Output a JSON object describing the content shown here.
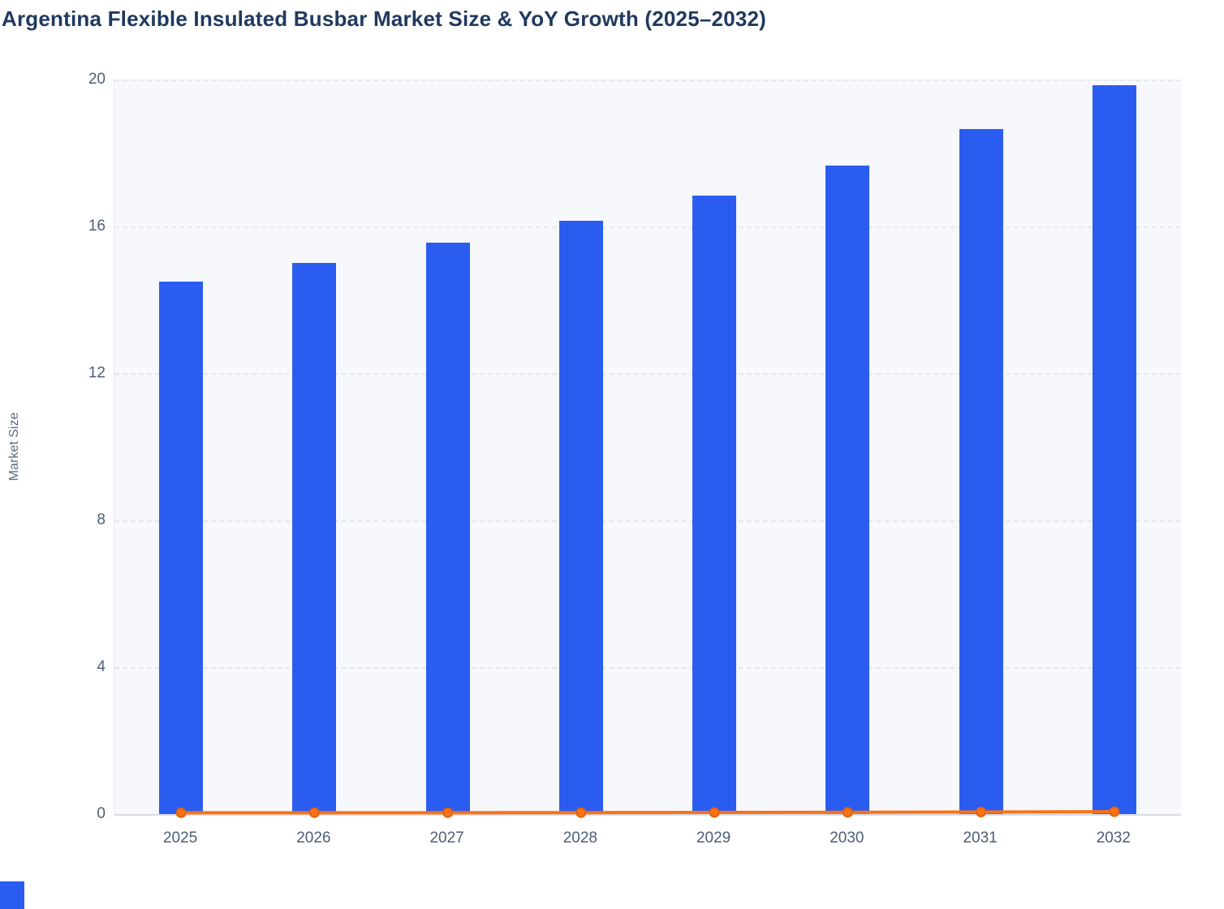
{
  "chart_data": {
    "type": "bar",
    "title": "Argentina Flexible Insulated Busbar Market Size & YoY Growth (2025–2032)",
    "xlabel": "",
    "ylabel": "Market Size",
    "categories": [
      "2025",
      "2026",
      "2027",
      "2028",
      "2029",
      "2030",
      "2031",
      "2032"
    ],
    "series": [
      {
        "name": "Market Size",
        "type": "bar",
        "color": "#2b5cf0",
        "values": [
          14.5,
          15.0,
          15.55,
          16.15,
          16.85,
          17.65,
          18.65,
          19.85
        ]
      },
      {
        "name": "YoY Growth",
        "type": "line",
        "color": "#f97316",
        "marker_edge_color": "#e2620d",
        "values": [
          0.035,
          0.037,
          0.037,
          0.039,
          0.043,
          0.047,
          0.055,
          0.064
        ]
      }
    ],
    "ylim": [
      0,
      20
    ],
    "yticks": [
      0,
      4,
      8,
      12,
      16,
      20
    ],
    "grid": "horizontal-dashed",
    "legend": "none",
    "plot_background": "#f7f8fb"
  },
  "colors": {
    "title_text": "#20395f",
    "axis_text": "#4c5e76",
    "corner_accent": "#2b5cf0"
  }
}
